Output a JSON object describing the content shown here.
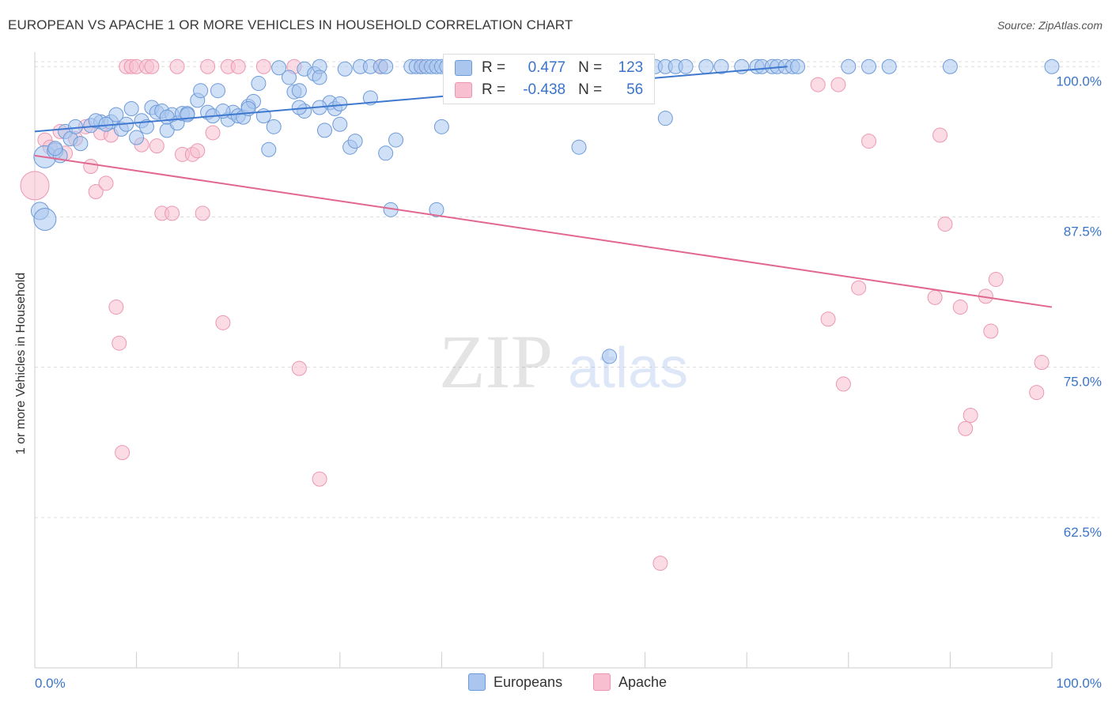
{
  "title": "EUROPEAN VS APACHE 1 OR MORE VEHICLES IN HOUSEHOLD CORRELATION CHART",
  "source": "Source: ZipAtlas.com",
  "watermark": {
    "zip": "ZIP",
    "atlas": "atlas"
  },
  "legend": {
    "europeans": {
      "r_label": "R =",
      "r_value": "0.477",
      "n_label": "N =",
      "n_value": "123"
    },
    "apache": {
      "r_label": "R =",
      "r_value": "-0.438",
      "n_label": "N =",
      "n_value": "56"
    }
  },
  "bottom_legend": {
    "europeans": "Europeans",
    "apache": "Apache"
  },
  "colors": {
    "europeans_fill": "#aac6ef",
    "europeans_stroke": "#6c9ad8",
    "europeans_line": "#3f78cf",
    "apache_fill": "#f7bfd0",
    "apache_stroke": "#ec97b2",
    "apache_line": "#e2678f",
    "tick_label": "#3a74c9",
    "grid": "#dddddd"
  },
  "chart_data": {
    "type": "scatter",
    "title": "EUROPEAN VS APACHE 1 OR MORE VEHICLES IN HOUSEHOLD CORRELATION CHART",
    "xlabel": "",
    "ylabel": "1 or more Vehicles in Household",
    "xlim": [
      0,
      100
    ],
    "ylim": [
      50,
      101.2
    ],
    "x_tick_labels": [
      "0.0%",
      "100.0%"
    ],
    "y_ticks": [
      62.5,
      75.0,
      87.5,
      100.0
    ],
    "y_tick_labels": [
      "62.5%",
      "75.0%",
      "87.5%",
      "100.0%"
    ],
    "grid": true,
    "legend_position": "top-center",
    "series": [
      {
        "name": "Europeans",
        "r": 0.477,
        "n": 123,
        "trend": {
          "x": [
            0,
            74
          ],
          "y": [
            94.6,
            100.0
          ]
        },
        "points": [
          [
            1,
            92.5,
            14
          ],
          [
            2,
            93,
            10
          ],
          [
            2.5,
            92.6,
            9
          ],
          [
            3,
            94.6,
            9
          ],
          [
            3.5,
            94,
            9
          ],
          [
            4.5,
            93.6,
            9
          ],
          [
            5.5,
            95.1,
            9
          ],
          [
            6.5,
            95.4,
            9
          ],
          [
            7.5,
            95.4,
            9
          ],
          [
            8,
            96,
            9
          ],
          [
            8.5,
            94.8,
            9
          ],
          [
            9,
            95.2,
            9
          ],
          [
            10,
            94.1,
            9
          ],
          [
            10.5,
            95.5,
            9
          ],
          [
            11,
            95,
            9
          ],
          [
            11.5,
            96.6,
            9
          ],
          [
            12,
            96.2,
            9
          ],
          [
            12.5,
            96.3,
            9
          ],
          [
            13,
            94.7,
            9
          ],
          [
            13.5,
            96,
            9
          ],
          [
            14,
            95.3,
            9
          ],
          [
            14.5,
            96.1,
            9
          ],
          [
            15,
            96.1,
            9
          ],
          [
            16,
            97.2,
            9
          ],
          [
            16.3,
            98,
            9
          ],
          [
            17,
            96.2,
            9
          ],
          [
            17.5,
            95.9,
            9
          ],
          [
            18,
            98,
            9
          ],
          [
            19,
            95.6,
            9
          ],
          [
            19.5,
            96.2,
            9
          ],
          [
            20,
            95.9,
            9
          ],
          [
            20.5,
            95.8,
            9
          ],
          [
            21,
            96.7,
            9
          ],
          [
            21.5,
            97.1,
            9
          ],
          [
            22,
            98.6,
            9
          ],
          [
            22.5,
            95.9,
            9
          ],
          [
            23,
            93.1,
            9
          ],
          [
            23.5,
            95,
            9
          ],
          [
            24,
            99.9,
            9
          ],
          [
            25,
            99.1,
            9
          ],
          [
            25.5,
            97.9,
            9
          ],
          [
            26,
            98,
            9
          ],
          [
            26.5,
            99.8,
            9
          ],
          [
            26.5,
            96.3,
            9
          ],
          [
            27.5,
            99.4,
            9
          ],
          [
            28,
            100,
            9
          ],
          [
            28,
            99.1,
            9
          ],
          [
            28.5,
            94.7,
            9
          ],
          [
            29,
            97,
            9
          ],
          [
            29.5,
            96.5,
            9
          ],
          [
            30,
            95.2,
            9
          ],
          [
            30.5,
            99.8,
            9
          ],
          [
            31,
            93.3,
            9
          ],
          [
            31.5,
            93.8,
            9
          ],
          [
            32,
            100,
            9
          ],
          [
            33,
            100,
            9
          ],
          [
            33,
            97.4,
            9
          ],
          [
            34,
            100,
            9
          ],
          [
            34.5,
            100,
            9
          ],
          [
            34.5,
            92.8,
            9
          ],
          [
            35.5,
            93.9,
            9
          ],
          [
            37,
            100,
            9
          ],
          [
            37.5,
            100,
            9
          ],
          [
            38,
            100,
            9
          ],
          [
            38.5,
            100,
            9
          ],
          [
            39,
            100,
            9
          ],
          [
            39.5,
            100,
            9
          ],
          [
            40,
            100,
            9
          ],
          [
            40.5,
            100,
            9
          ],
          [
            41,
            100,
            9
          ],
          [
            42,
            100,
            9
          ],
          [
            40,
            95,
            9
          ],
          [
            42.5,
            100,
            9
          ],
          [
            43.5,
            100,
            9
          ],
          [
            44,
            100,
            9
          ],
          [
            45,
            100,
            9
          ],
          [
            46,
            100,
            9
          ],
          [
            47,
            100,
            9
          ],
          [
            48,
            100,
            9
          ],
          [
            49,
            100,
            9
          ],
          [
            50,
            100,
            9
          ],
          [
            51,
            100,
            9
          ],
          [
            52,
            100,
            9
          ],
          [
            53,
            100,
            9
          ],
          [
            54,
            100,
            9
          ],
          [
            55,
            100,
            9
          ],
          [
            56,
            100,
            9
          ],
          [
            57,
            100,
            9
          ],
          [
            58,
            100,
            9
          ],
          [
            59,
            100,
            9
          ],
          [
            60,
            100,
            9
          ],
          [
            61,
            100,
            9
          ],
          [
            62,
            100,
            9
          ],
          [
            63,
            100,
            9
          ],
          [
            64,
            100,
            9
          ],
          [
            66,
            100,
            9
          ],
          [
            67.5,
            100,
            9
          ],
          [
            69.5,
            100,
            9
          ],
          [
            71,
            100,
            9
          ],
          [
            71.5,
            100,
            9
          ],
          [
            72.5,
            100,
            9
          ],
          [
            73,
            100,
            9
          ],
          [
            73.8,
            100,
            9
          ],
          [
            74.5,
            100,
            9
          ],
          [
            75,
            100,
            9
          ],
          [
            80,
            100,
            9
          ],
          [
            82,
            100,
            9
          ],
          [
            84,
            100,
            9
          ],
          [
            90,
            100,
            9
          ],
          [
            100,
            100,
            9
          ],
          [
            53.5,
            93.3,
            9
          ],
          [
            56.5,
            75.9,
            9
          ],
          [
            58.5,
            99.1,
            9
          ],
          [
            62,
            95.7,
            9
          ],
          [
            35,
            88.1,
            9
          ],
          [
            39.5,
            88.1,
            9
          ],
          [
            0.5,
            88,
            11
          ],
          [
            1,
            87.3,
            14
          ],
          [
            2,
            93.2,
            9
          ],
          [
            4,
            95,
            9
          ],
          [
            6,
            95.5,
            9
          ],
          [
            7,
            95.2,
            9
          ],
          [
            9.5,
            96.5,
            9
          ],
          [
            13,
            95.8,
            9
          ],
          [
            15,
            96,
            9
          ],
          [
            18.5,
            96.3,
            9
          ],
          [
            21,
            96.5,
            9
          ],
          [
            26,
            96.6,
            9
          ],
          [
            28,
            96.6,
            9
          ],
          [
            30,
            96.9,
            9
          ]
        ]
      },
      {
        "name": "Apache",
        "r": -0.438,
        "n": 56,
        "trend": {
          "x": [
            0,
            100
          ],
          "y": [
            92.6,
            80.0
          ]
        },
        "points": [
          [
            0,
            90.1,
            18
          ],
          [
            1,
            93.9,
            9
          ],
          [
            1.5,
            93.3,
            9
          ],
          [
            2.5,
            94.6,
            9
          ],
          [
            3,
            92.8,
            9
          ],
          [
            4,
            94,
            9
          ],
          [
            5,
            95,
            9
          ],
          [
            5.5,
            91.7,
            9
          ],
          [
            6,
            89.6,
            9
          ],
          [
            6.5,
            94.5,
            9
          ],
          [
            7,
            90.3,
            9
          ],
          [
            7.5,
            94.3,
            9
          ],
          [
            8,
            80,
            9
          ],
          [
            8.3,
            77,
            9
          ],
          [
            8.6,
            67.9,
            9
          ],
          [
            9,
            100,
            9
          ],
          [
            9.5,
            100,
            9
          ],
          [
            10,
            100,
            9
          ],
          [
            10.5,
            93.5,
            9
          ],
          [
            11,
            100,
            9
          ],
          [
            11.5,
            100,
            9
          ],
          [
            12,
            93.4,
            9
          ],
          [
            12.5,
            87.8,
            9
          ],
          [
            13.5,
            87.8,
            9
          ],
          [
            14,
            100,
            9
          ],
          [
            14.5,
            92.7,
            9
          ],
          [
            15.5,
            92.7,
            9
          ],
          [
            16,
            93,
            9
          ],
          [
            16.5,
            87.8,
            9
          ],
          [
            17,
            100,
            9
          ],
          [
            17.5,
            94.5,
            9
          ],
          [
            18.5,
            78.7,
            9
          ],
          [
            19,
            100,
            9
          ],
          [
            20,
            100,
            9
          ],
          [
            22.5,
            100,
            9
          ],
          [
            25.5,
            100,
            9
          ],
          [
            26,
            74.9,
            9
          ],
          [
            28,
            65.7,
            9
          ],
          [
            34,
            100,
            9
          ],
          [
            38,
            100,
            9
          ],
          [
            61.5,
            58.7,
            9
          ],
          [
            77,
            98.5,
            9
          ],
          [
            78,
            79,
            9
          ],
          [
            79,
            98.5,
            9
          ],
          [
            79.5,
            73.6,
            9
          ],
          [
            81,
            81.6,
            9
          ],
          [
            82,
            93.8,
            9
          ],
          [
            88.5,
            80.8,
            9
          ],
          [
            89,
            94.3,
            9
          ],
          [
            89.5,
            86.9,
            9
          ],
          [
            91,
            80,
            9
          ],
          [
            91.5,
            69.9,
            9
          ],
          [
            92,
            71,
            9
          ],
          [
            93.5,
            80.9,
            9
          ],
          [
            94,
            78,
            9
          ],
          [
            94.5,
            82.3,
            9
          ],
          [
            98.5,
            72.9,
            9
          ],
          [
            99,
            75.4,
            9
          ]
        ]
      }
    ]
  }
}
